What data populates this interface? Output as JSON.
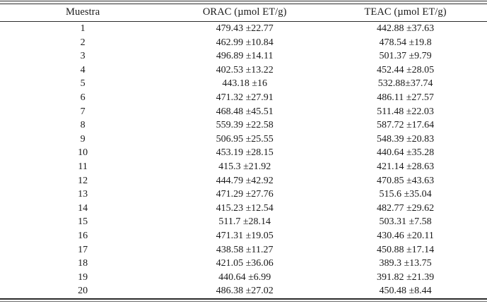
{
  "table": {
    "columns": [
      {
        "label": "Muestra"
      },
      {
        "label": "ORAC (µmol ET/g)"
      },
      {
        "label": "TEAC (µmol ET/g)"
      }
    ],
    "rows": [
      [
        "1",
        "479.43 ±22.77",
        "442.88 ±37.63"
      ],
      [
        "2",
        "462.99 ±10.84",
        "478.54 ±19.8"
      ],
      [
        "3",
        "496.89 ±14.11",
        "501.37 ±9.79"
      ],
      [
        "4",
        "402.53 ±13.22",
        "452.44 ±28.05"
      ],
      [
        "5",
        "443.18 ±16",
        "532.88±37.74"
      ],
      [
        "6",
        "471.32 ±27.91",
        "486.11 ±27.57"
      ],
      [
        "7",
        "468.48 ±45.51",
        "511.48 ±22.03"
      ],
      [
        "8",
        "559.39 ±22.58",
        "587.72 ±17.64"
      ],
      [
        "9",
        "506.95 ±25.55",
        "548.39 ±20.83"
      ],
      [
        "10",
        "453.19 ±28.15",
        "440.64 ±35.28"
      ],
      [
        "11",
        "415.3 ±21.92",
        "421.14 ±28.63"
      ],
      [
        "12",
        "444.79 ±42.92",
        "470.85 ±43.63"
      ],
      [
        "13",
        "471.29 ±27.76",
        "515.6 ±35.04"
      ],
      [
        "14",
        "415.23 ±12.54",
        "482.77 ±29.62"
      ],
      [
        "15",
        "511.7 ±28.14",
        "503.31 ±7.58"
      ],
      [
        "16",
        "471.31 ±19.05",
        "430.46 ±20.11"
      ],
      [
        "17",
        "438.58 ±11.27",
        "450.88 ±17.14"
      ],
      [
        "18",
        "421.05 ±36.06",
        "389.3 ±13.75"
      ],
      [
        "19",
        "440.64 ±6.99",
        "391.82 ±21.39"
      ],
      [
        "20",
        "486.38 ±27.02",
        "450.48 ±8.44"
      ]
    ]
  },
  "colors": {
    "background": "#ffffff",
    "text": "#1a1a1a",
    "rule": "#2b2b2b"
  }
}
